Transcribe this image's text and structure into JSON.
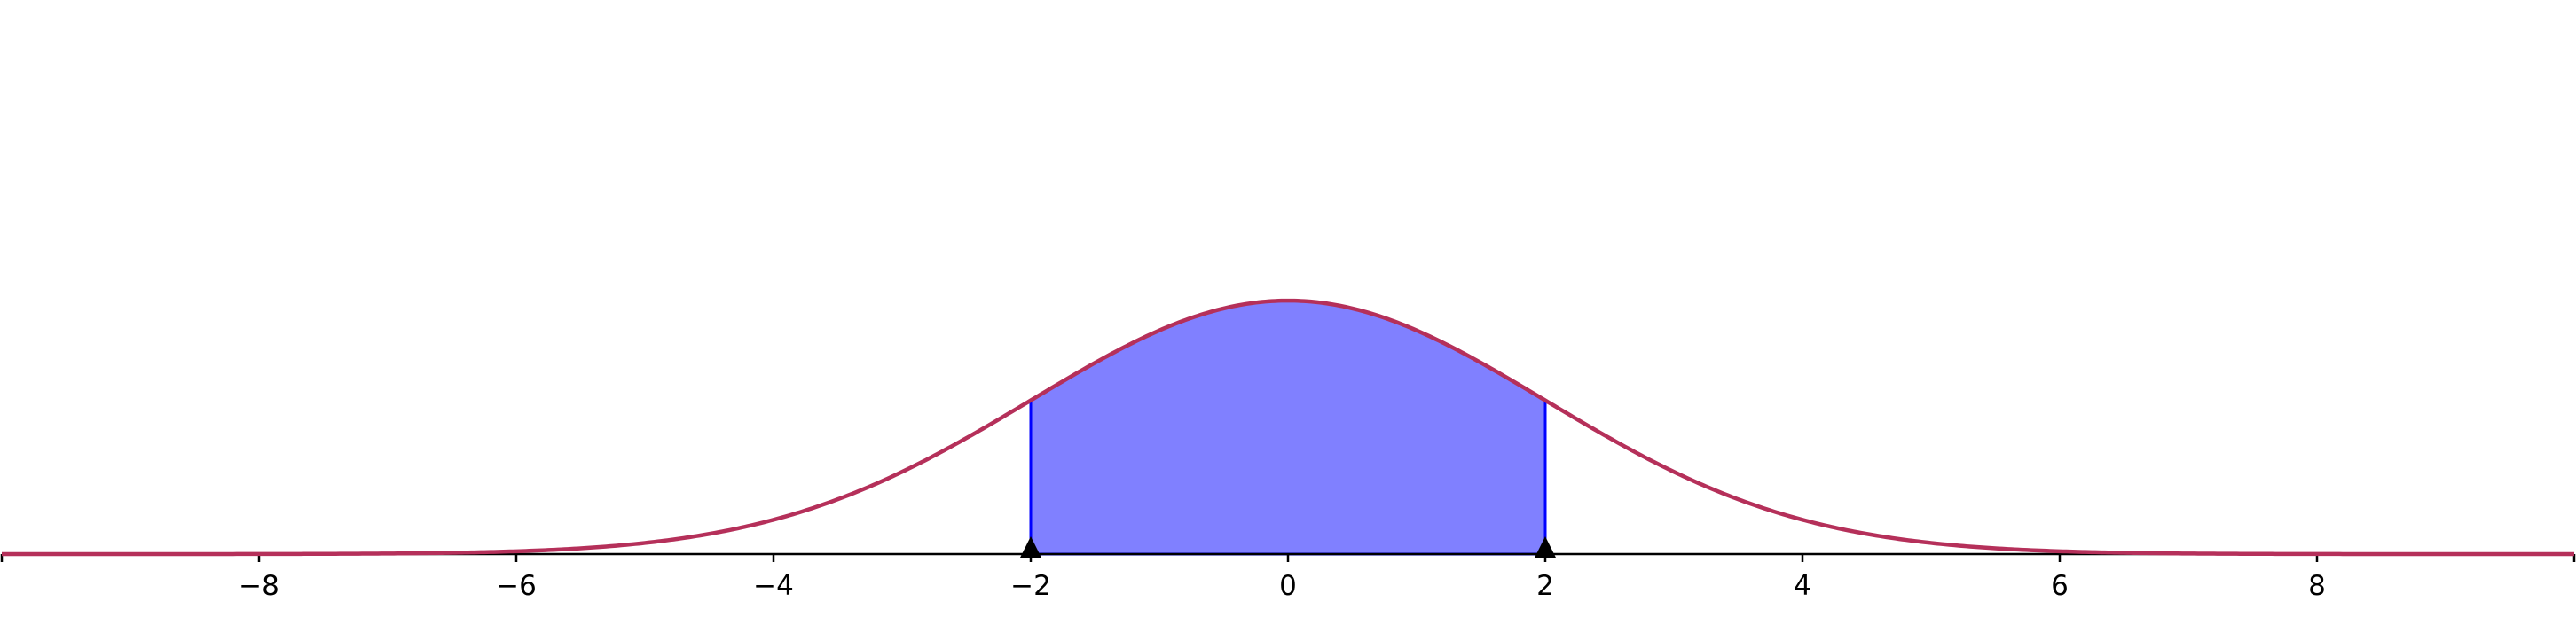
{
  "chart_data": {
    "type": "area",
    "title": "",
    "xlabel": "",
    "ylabel": "",
    "xlim": [
      -10,
      10
    ],
    "ylim": [
      0,
      0.42
    ],
    "grid": false,
    "x_ticks": [
      -8,
      -6,
      -4,
      -2,
      0,
      2,
      4,
      6,
      8
    ],
    "x_tick_labels": [
      "−8",
      "−6",
      "−4",
      "−2",
      "0",
      "2",
      "4",
      "6",
      "8"
    ],
    "series": [
      {
        "function": "normal_pdf",
        "mean": 0,
        "sd": 2,
        "x_range": [
          -10,
          10
        ]
      }
    ],
    "shaded_region": {
      "from": -2,
      "to": 2
    },
    "markers": [
      -2,
      2
    ],
    "colors": {
      "curve": "#b5305a",
      "fill": "#8080ff",
      "fill_edge": "#0000ff",
      "axis": "#000000",
      "marker": "#000000"
    }
  }
}
